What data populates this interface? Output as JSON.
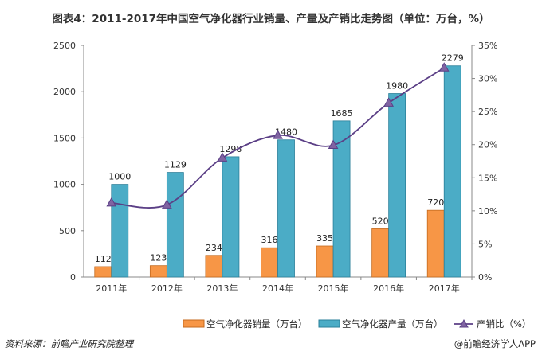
{
  "chart_data": {
    "type": "bar+line",
    "title": "图表4：2011-2017年中国空气净化器行业销量、产量及产销比走势图（单位：万台，%）",
    "categories": [
      "2011年",
      "2012年",
      "2013年",
      "2014年",
      "2015年",
      "2016年",
      "2017年"
    ],
    "series": [
      {
        "name": "空气净化器销量（万台）",
        "type": "bar",
        "axis": "left",
        "color": "#F79646",
        "values": [
          112,
          123,
          234,
          316,
          335,
          520,
          720
        ]
      },
      {
        "name": "空气净化器产量（万台）",
        "type": "bar",
        "axis": "left",
        "color": "#4BACC6",
        "values": [
          1000,
          1129,
          1298,
          1480,
          1685,
          1980,
          2279
        ]
      },
      {
        "name": "产销比（%）",
        "type": "line",
        "axis": "right",
        "color": "#8064A2",
        "marker": "triangle",
        "values": [
          11.2,
          10.9,
          18.0,
          21.4,
          19.9,
          26.3,
          31.6
        ]
      }
    ],
    "left_axis": {
      "ylim": [
        0,
        2500
      ],
      "ticks": [
        "0",
        "500",
        "1000",
        "1500",
        "2000",
        "2500"
      ]
    },
    "right_axis": {
      "ylim": [
        0,
        35
      ],
      "ticks": [
        "0%",
        "5%",
        "10%",
        "15%",
        "20%",
        "25%",
        "30%",
        "35%"
      ]
    },
    "grid": false,
    "legend": "bottom"
  },
  "footer": {
    "source": "资料来源：前瞻产业研究院整理",
    "brand": "@前瞻经济学人APP"
  }
}
